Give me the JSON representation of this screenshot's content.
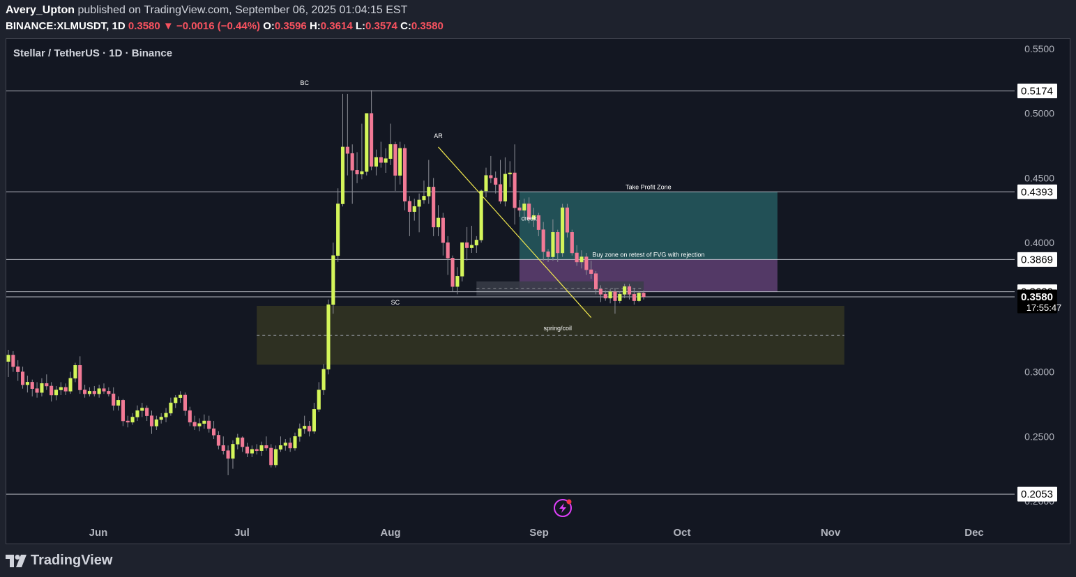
{
  "header": {
    "publisher": "Avery_Upton",
    "published_text": "published on TradingView.com, September 06, 2025 01:04:15 EST",
    "symbol": "BINANCE:XLMUSDT, 1D",
    "last": "0.3580",
    "change": "−0.0016 (−0.44%)",
    "o_label": "O:",
    "o": "0.3596",
    "h_label": "H:",
    "h": "0.3614",
    "l_label": "L:",
    "l": "0.3574",
    "c_label": "C:",
    "c": "0.3580"
  },
  "chart_title": "Stellar / TetherUS · 1D · Binance",
  "footer": {
    "brand": "TradingView"
  },
  "colors": {
    "up": "#d4f55a",
    "down": "#f27a96",
    "wick": "#8c8f96",
    "tp_zone": "#23535a",
    "buy_zone": "#5b3d6e",
    "demand_zone": "#2f3223",
    "trendline": "#f2e94e",
    "hline": "#d1d4dc"
  },
  "chart_data": {
    "type": "candlestick",
    "title": "Stellar / TetherUS · 1D · Binance",
    "y_ticks": [
      "0.5500",
      "0.5000",
      "0.4500",
      "0.4000",
      "0.3000",
      "0.2500",
      "0.2000"
    ],
    "x_ticks": [
      "Jun",
      "Jul",
      "Aug",
      "Sep",
      "Oct",
      "Nov",
      "Dec"
    ],
    "ylim": [
      0.185,
      0.555
    ],
    "price_labels": [
      {
        "text": "0.5174",
        "value": 0.5174,
        "style": "light"
      },
      {
        "text": "0.4393",
        "value": 0.4393,
        "style": "light"
      },
      {
        "text": "0.3869",
        "value": 0.3869,
        "style": "light"
      },
      {
        "text": "0.3620",
        "value": 0.362,
        "style": "light"
      },
      {
        "text": "0.3580",
        "value": 0.358,
        "style": "dark",
        "sub": "17:55:47"
      },
      {
        "text": "0.2053",
        "value": 0.2053,
        "style": "light"
      }
    ],
    "zones": [
      {
        "name": "take-profit-zone",
        "label": "Take Profit Zone",
        "from": "2025-08-29",
        "to": "2025-10-22",
        "top": 0.4393,
        "bottom": 0.3869
      },
      {
        "name": "buy-zone",
        "label": "Buy zone on retest of FVG with rejection",
        "from": "2025-08-29",
        "to": "2025-10-22",
        "top": 0.3869,
        "bottom": 0.362
      },
      {
        "name": "fvg-zone",
        "label": "",
        "from": "2025-08-20",
        "to": "2025-09-24",
        "top": 0.37,
        "bottom": 0.359
      },
      {
        "name": "demand-zone",
        "label": "",
        "from": "2025-07-05",
        "to": "2025-11-05",
        "top": 0.351,
        "bottom": 0.3055
      }
    ],
    "annotations": [
      {
        "text": "BC",
        "date": "2025-07-15",
        "value": 0.522
      },
      {
        "text": "AR",
        "date": "2025-08-12",
        "value": 0.481
      },
      {
        "text": "creek",
        "date": "2025-08-31",
        "value": 0.417
      },
      {
        "text": "SC",
        "date": "2025-08-03",
        "value": 0.352
      },
      {
        "text": "spring/coil",
        "date": "2025-09-06",
        "value": 0.332
      }
    ],
    "trendline": {
      "from": {
        "date": "2025-08-12",
        "value": 0.474
      },
      "to": {
        "date": "2025-09-13",
        "value": 0.342
      }
    },
    "candles": [
      {
        "d": "2025-05-14",
        "o": 0.308,
        "h": 0.317,
        "l": 0.296,
        "c": 0.313
      },
      {
        "d": "2025-05-15",
        "o": 0.313,
        "h": 0.316,
        "l": 0.3,
        "c": 0.304
      },
      {
        "d": "2025-05-16",
        "o": 0.304,
        "h": 0.309,
        "l": 0.293,
        "c": 0.3
      },
      {
        "d": "2025-05-17",
        "o": 0.3,
        "h": 0.304,
        "l": 0.287,
        "c": 0.29
      },
      {
        "d": "2025-05-18",
        "o": 0.29,
        "h": 0.297,
        "l": 0.284,
        "c": 0.292
      },
      {
        "d": "2025-05-19",
        "o": 0.292,
        "h": 0.294,
        "l": 0.281,
        "c": 0.287
      },
      {
        "d": "2025-05-20",
        "o": 0.287,
        "h": 0.292,
        "l": 0.28,
        "c": 0.284
      },
      {
        "d": "2025-05-21",
        "o": 0.284,
        "h": 0.295,
        "l": 0.281,
        "c": 0.291
      },
      {
        "d": "2025-05-22",
        "o": 0.291,
        "h": 0.298,
        "l": 0.286,
        "c": 0.289
      },
      {
        "d": "2025-05-23",
        "o": 0.289,
        "h": 0.292,
        "l": 0.277,
        "c": 0.282
      },
      {
        "d": "2025-05-24",
        "o": 0.282,
        "h": 0.289,
        "l": 0.278,
        "c": 0.286
      },
      {
        "d": "2025-05-25",
        "o": 0.286,
        "h": 0.292,
        "l": 0.282,
        "c": 0.288
      },
      {
        "d": "2025-05-26",
        "o": 0.288,
        "h": 0.291,
        "l": 0.282,
        "c": 0.285
      },
      {
        "d": "2025-05-27",
        "o": 0.285,
        "h": 0.3,
        "l": 0.283,
        "c": 0.295
      },
      {
        "d": "2025-05-28",
        "o": 0.295,
        "h": 0.307,
        "l": 0.292,
        "c": 0.305
      },
      {
        "d": "2025-05-29",
        "o": 0.305,
        "h": 0.312,
        "l": 0.283,
        "c": 0.286
      },
      {
        "d": "2025-05-30",
        "o": 0.286,
        "h": 0.29,
        "l": 0.28,
        "c": 0.283
      },
      {
        "d": "2025-05-31",
        "o": 0.283,
        "h": 0.288,
        "l": 0.281,
        "c": 0.285
      },
      {
        "d": "2025-06-01",
        "o": 0.285,
        "h": 0.289,
        "l": 0.281,
        "c": 0.283
      },
      {
        "d": "2025-06-02",
        "o": 0.283,
        "h": 0.29,
        "l": 0.28,
        "c": 0.287
      },
      {
        "d": "2025-06-03",
        "o": 0.287,
        "h": 0.291,
        "l": 0.283,
        "c": 0.285
      },
      {
        "d": "2025-06-04",
        "o": 0.285,
        "h": 0.288,
        "l": 0.281,
        "c": 0.283
      },
      {
        "d": "2025-06-05",
        "o": 0.283,
        "h": 0.288,
        "l": 0.27,
        "c": 0.274
      },
      {
        "d": "2025-06-06",
        "o": 0.274,
        "h": 0.281,
        "l": 0.27,
        "c": 0.278
      },
      {
        "d": "2025-06-07",
        "o": 0.278,
        "h": 0.279,
        "l": 0.258,
        "c": 0.262
      },
      {
        "d": "2025-06-08",
        "o": 0.262,
        "h": 0.266,
        "l": 0.257,
        "c": 0.261
      },
      {
        "d": "2025-06-09",
        "o": 0.261,
        "h": 0.268,
        "l": 0.259,
        "c": 0.265
      },
      {
        "d": "2025-06-10",
        "o": 0.265,
        "h": 0.274,
        "l": 0.262,
        "c": 0.27
      },
      {
        "d": "2025-06-11",
        "o": 0.27,
        "h": 0.276,
        "l": 0.265,
        "c": 0.272
      },
      {
        "d": "2025-06-12",
        "o": 0.272,
        "h": 0.274,
        "l": 0.262,
        "c": 0.266
      },
      {
        "d": "2025-06-13",
        "o": 0.266,
        "h": 0.27,
        "l": 0.252,
        "c": 0.258
      },
      {
        "d": "2025-06-14",
        "o": 0.258,
        "h": 0.266,
        "l": 0.255,
        "c": 0.263
      },
      {
        "d": "2025-06-15",
        "o": 0.263,
        "h": 0.268,
        "l": 0.26,
        "c": 0.265
      },
      {
        "d": "2025-06-16",
        "o": 0.265,
        "h": 0.272,
        "l": 0.261,
        "c": 0.268
      },
      {
        "d": "2025-06-17",
        "o": 0.268,
        "h": 0.28,
        "l": 0.266,
        "c": 0.276
      },
      {
        "d": "2025-06-18",
        "o": 0.276,
        "h": 0.282,
        "l": 0.272,
        "c": 0.28
      },
      {
        "d": "2025-06-19",
        "o": 0.28,
        "h": 0.285,
        "l": 0.276,
        "c": 0.282
      },
      {
        "d": "2025-06-20",
        "o": 0.282,
        "h": 0.284,
        "l": 0.266,
        "c": 0.27
      },
      {
        "d": "2025-06-21",
        "o": 0.27,
        "h": 0.273,
        "l": 0.258,
        "c": 0.261
      },
      {
        "d": "2025-06-22",
        "o": 0.261,
        "h": 0.266,
        "l": 0.255,
        "c": 0.258
      },
      {
        "d": "2025-06-23",
        "o": 0.258,
        "h": 0.264,
        "l": 0.254,
        "c": 0.26
      },
      {
        "d": "2025-06-24",
        "o": 0.26,
        "h": 0.267,
        "l": 0.256,
        "c": 0.262
      },
      {
        "d": "2025-06-25",
        "o": 0.262,
        "h": 0.266,
        "l": 0.253,
        "c": 0.256
      },
      {
        "d": "2025-06-26",
        "o": 0.256,
        "h": 0.262,
        "l": 0.248,
        "c": 0.251
      },
      {
        "d": "2025-06-27",
        "o": 0.251,
        "h": 0.254,
        "l": 0.24,
        "c": 0.243
      },
      {
        "d": "2025-06-28",
        "o": 0.243,
        "h": 0.25,
        "l": 0.236,
        "c": 0.239
      },
      {
        "d": "2025-06-29",
        "o": 0.239,
        "h": 0.243,
        "l": 0.22,
        "c": 0.233
      },
      {
        "d": "2025-06-30",
        "o": 0.233,
        "h": 0.247,
        "l": 0.225,
        "c": 0.244
      },
      {
        "d": "2025-07-01",
        "o": 0.244,
        "h": 0.252,
        "l": 0.24,
        "c": 0.249
      },
      {
        "d": "2025-07-02",
        "o": 0.249,
        "h": 0.25,
        "l": 0.238,
        "c": 0.242
      },
      {
        "d": "2025-07-03",
        "o": 0.242,
        "h": 0.245,
        "l": 0.234,
        "c": 0.237
      },
      {
        "d": "2025-07-04",
        "o": 0.237,
        "h": 0.243,
        "l": 0.234,
        "c": 0.24
      },
      {
        "d": "2025-07-05",
        "o": 0.24,
        "h": 0.244,
        "l": 0.236,
        "c": 0.239
      },
      {
        "d": "2025-07-06",
        "o": 0.239,
        "h": 0.246,
        "l": 0.235,
        "c": 0.243
      },
      {
        "d": "2025-07-07",
        "o": 0.243,
        "h": 0.25,
        "l": 0.239,
        "c": 0.241
      },
      {
        "d": "2025-07-08",
        "o": 0.241,
        "h": 0.244,
        "l": 0.226,
        "c": 0.228
      },
      {
        "d": "2025-07-09",
        "o": 0.228,
        "h": 0.243,
        "l": 0.226,
        "c": 0.24
      },
      {
        "d": "2025-07-10",
        "o": 0.24,
        "h": 0.25,
        "l": 0.238,
        "c": 0.243
      },
      {
        "d": "2025-07-11",
        "o": 0.243,
        "h": 0.248,
        "l": 0.239,
        "c": 0.245
      },
      {
        "d": "2025-07-12",
        "o": 0.245,
        "h": 0.249,
        "l": 0.238,
        "c": 0.241
      },
      {
        "d": "2025-07-13",
        "o": 0.241,
        "h": 0.253,
        "l": 0.239,
        "c": 0.25
      },
      {
        "d": "2025-07-14",
        "o": 0.25,
        "h": 0.26,
        "l": 0.246,
        "c": 0.256
      },
      {
        "d": "2025-07-15",
        "o": 0.256,
        "h": 0.266,
        "l": 0.252,
        "c": 0.258
      },
      {
        "d": "2025-07-16",
        "o": 0.258,
        "h": 0.262,
        "l": 0.25,
        "c": 0.254
      },
      {
        "d": "2025-07-17",
        "o": 0.254,
        "h": 0.276,
        "l": 0.252,
        "c": 0.271
      },
      {
        "d": "2025-07-18",
        "o": 0.271,
        "h": 0.292,
        "l": 0.269,
        "c": 0.286
      },
      {
        "d": "2025-07-19",
        "o": 0.286,
        "h": 0.306,
        "l": 0.282,
        "c": 0.302
      },
      {
        "d": "2025-07-20",
        "o": 0.302,
        "h": 0.356,
        "l": 0.298,
        "c": 0.352
      },
      {
        "d": "2025-07-21",
        "o": 0.352,
        "h": 0.4,
        "l": 0.345,
        "c": 0.39
      },
      {
        "d": "2025-07-22",
        "o": 0.39,
        "h": 0.442,
        "l": 0.385,
        "c": 0.43
      },
      {
        "d": "2025-07-23",
        "o": 0.43,
        "h": 0.515,
        "l": 0.428,
        "c": 0.474
      },
      {
        "d": "2025-07-24",
        "o": 0.474,
        "h": 0.515,
        "l": 0.452,
        "c": 0.469
      },
      {
        "d": "2025-07-25",
        "o": 0.469,
        "h": 0.476,
        "l": 0.43,
        "c": 0.456
      },
      {
        "d": "2025-07-26",
        "o": 0.456,
        "h": 0.47,
        "l": 0.446,
        "c": 0.453
      },
      {
        "d": "2025-07-27",
        "o": 0.453,
        "h": 0.492,
        "l": 0.449,
        "c": 0.455
      },
      {
        "d": "2025-07-28",
        "o": 0.455,
        "h": 0.5,
        "l": 0.452,
        "c": 0.5
      },
      {
        "d": "2025-07-29",
        "o": 0.5,
        "h": 0.518,
        "l": 0.456,
        "c": 0.459
      },
      {
        "d": "2025-07-30",
        "o": 0.459,
        "h": 0.472,
        "l": 0.452,
        "c": 0.466
      },
      {
        "d": "2025-07-31",
        "o": 0.466,
        "h": 0.478,
        "l": 0.458,
        "c": 0.462
      },
      {
        "d": "2025-08-01",
        "o": 0.462,
        "h": 0.473,
        "l": 0.454,
        "c": 0.465
      },
      {
        "d": "2025-08-02",
        "o": 0.465,
        "h": 0.492,
        "l": 0.46,
        "c": 0.476
      },
      {
        "d": "2025-08-03",
        "o": 0.476,
        "h": 0.478,
        "l": 0.44,
        "c": 0.452
      },
      {
        "d": "2025-08-04",
        "o": 0.452,
        "h": 0.478,
        "l": 0.445,
        "c": 0.473
      },
      {
        "d": "2025-08-05",
        "o": 0.473,
        "h": 0.476,
        "l": 0.425,
        "c": 0.432
      },
      {
        "d": "2025-08-06",
        "o": 0.432,
        "h": 0.436,
        "l": 0.405,
        "c": 0.424
      },
      {
        "d": "2025-08-07",
        "o": 0.424,
        "h": 0.434,
        "l": 0.417,
        "c": 0.428
      },
      {
        "d": "2025-08-08",
        "o": 0.428,
        "h": 0.438,
        "l": 0.408,
        "c": 0.433
      },
      {
        "d": "2025-08-09",
        "o": 0.433,
        "h": 0.448,
        "l": 0.43,
        "c": 0.436
      },
      {
        "d": "2025-08-10",
        "o": 0.436,
        "h": 0.464,
        "l": 0.43,
        "c": 0.443
      },
      {
        "d": "2025-08-11",
        "o": 0.443,
        "h": 0.45,
        "l": 0.405,
        "c": 0.412
      },
      {
        "d": "2025-08-12",
        "o": 0.412,
        "h": 0.429,
        "l": 0.405,
        "c": 0.419
      },
      {
        "d": "2025-08-13",
        "o": 0.419,
        "h": 0.423,
        "l": 0.39,
        "c": 0.4
      },
      {
        "d": "2025-08-14",
        "o": 0.4,
        "h": 0.405,
        "l": 0.375,
        "c": 0.388
      },
      {
        "d": "2025-08-15",
        "o": 0.388,
        "h": 0.39,
        "l": 0.362,
        "c": 0.366
      },
      {
        "d": "2025-08-16",
        "o": 0.366,
        "h": 0.381,
        "l": 0.36,
        "c": 0.374
      },
      {
        "d": "2025-08-17",
        "o": 0.374,
        "h": 0.4,
        "l": 0.37,
        "c": 0.4
      },
      {
        "d": "2025-08-18",
        "o": 0.4,
        "h": 0.412,
        "l": 0.386,
        "c": 0.396
      },
      {
        "d": "2025-08-19",
        "o": 0.396,
        "h": 0.413,
        "l": 0.392,
        "c": 0.398
      },
      {
        "d": "2025-08-20",
        "o": 0.398,
        "h": 0.405,
        "l": 0.392,
        "c": 0.402
      },
      {
        "d": "2025-08-21",
        "o": 0.402,
        "h": 0.441,
        "l": 0.4,
        "c": 0.44
      },
      {
        "d": "2025-08-22",
        "o": 0.44,
        "h": 0.458,
        "l": 0.435,
        "c": 0.452
      },
      {
        "d": "2025-08-23",
        "o": 0.452,
        "h": 0.467,
        "l": 0.446,
        "c": 0.45
      },
      {
        "d": "2025-08-24",
        "o": 0.45,
        "h": 0.455,
        "l": 0.438,
        "c": 0.445
      },
      {
        "d": "2025-08-25",
        "o": 0.445,
        "h": 0.464,
        "l": 0.43,
        "c": 0.432
      },
      {
        "d": "2025-08-26",
        "o": 0.432,
        "h": 0.466,
        "l": 0.428,
        "c": 0.453
      },
      {
        "d": "2025-08-27",
        "o": 0.453,
        "h": 0.463,
        "l": 0.443,
        "c": 0.454
      },
      {
        "d": "2025-08-28",
        "o": 0.454,
        "h": 0.476,
        "l": 0.414,
        "c": 0.427
      },
      {
        "d": "2025-08-29",
        "o": 0.427,
        "h": 0.433,
        "l": 0.42,
        "c": 0.425
      },
      {
        "d": "2025-08-30",
        "o": 0.425,
        "h": 0.434,
        "l": 0.418,
        "c": 0.43
      },
      {
        "d": "2025-08-31",
        "o": 0.43,
        "h": 0.435,
        "l": 0.415,
        "c": 0.418
      },
      {
        "d": "2025-09-01",
        "o": 0.418,
        "h": 0.427,
        "l": 0.412,
        "c": 0.421
      },
      {
        "d": "2025-09-02",
        "o": 0.421,
        "h": 0.423,
        "l": 0.405,
        "c": 0.41
      },
      {
        "d": "2025-09-03",
        "o": 0.41,
        "h": 0.416,
        "l": 0.386,
        "c": 0.393
      },
      {
        "d": "2025-09-04",
        "o": 0.393,
        "h": 0.395,
        "l": 0.385,
        "c": 0.389
      },
      {
        "d": "2025-09-05",
        "o": 0.389,
        "h": 0.418,
        "l": 0.386,
        "c": 0.408
      },
      {
        "d": "2025-09-06",
        "o": 0.408,
        "h": 0.41,
        "l": 0.385,
        "c": 0.392
      },
      {
        "d": "2025-09-07",
        "o": 0.392,
        "h": 0.43,
        "l": 0.389,
        "c": 0.427
      },
      {
        "d": "2025-09-08",
        "o": 0.427,
        "h": 0.43,
        "l": 0.404,
        "c": 0.408
      },
      {
        "d": "2025-09-09",
        "o": 0.408,
        "h": 0.41,
        "l": 0.39,
        "c": 0.392
      },
      {
        "d": "2025-09-10",
        "o": 0.392,
        "h": 0.398,
        "l": 0.382,
        "c": 0.385
      },
      {
        "d": "2025-09-11",
        "o": 0.385,
        "h": 0.394,
        "l": 0.38,
        "c": 0.389
      },
      {
        "d": "2025-09-12",
        "o": 0.389,
        "h": 0.392,
        "l": 0.375,
        "c": 0.379
      },
      {
        "d": "2025-09-13",
        "o": 0.379,
        "h": 0.386,
        "l": 0.372,
        "c": 0.376
      },
      {
        "d": "2025-09-14",
        "o": 0.376,
        "h": 0.378,
        "l": 0.36,
        "c": 0.364
      },
      {
        "d": "2025-09-15",
        "o": 0.364,
        "h": 0.367,
        "l": 0.354,
        "c": 0.36
      },
      {
        "d": "2025-09-16",
        "o": 0.36,
        "h": 0.363,
        "l": 0.355,
        "c": 0.357
      },
      {
        "d": "2025-09-17",
        "o": 0.357,
        "h": 0.364,
        "l": 0.353,
        "c": 0.362
      },
      {
        "d": "2025-09-18",
        "o": 0.362,
        "h": 0.365,
        "l": 0.345,
        "c": 0.355
      },
      {
        "d": "2025-09-19",
        "o": 0.355,
        "h": 0.362,
        "l": 0.353,
        "c": 0.36
      },
      {
        "d": "2025-09-20",
        "o": 0.36,
        "h": 0.368,
        "l": 0.357,
        "c": 0.366
      },
      {
        "d": "2025-09-21",
        "o": 0.366,
        "h": 0.368,
        "l": 0.356,
        "c": 0.36
      },
      {
        "d": "2025-09-22",
        "o": 0.36,
        "h": 0.365,
        "l": 0.352,
        "c": 0.355
      },
      {
        "d": "2025-09-23",
        "o": 0.355,
        "h": 0.362,
        "l": 0.354,
        "c": 0.361
      },
      {
        "d": "2025-09-24",
        "o": 0.361,
        "h": 0.363,
        "l": 0.356,
        "c": 0.358
      }
    ]
  }
}
